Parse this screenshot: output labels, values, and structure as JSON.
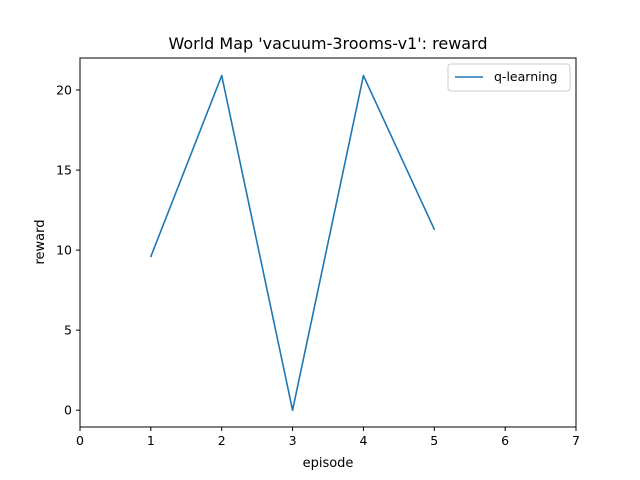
{
  "chart_data": {
    "type": "line",
    "title": "World Map 'vacuum-3rooms-v1': reward",
    "xlabel": "episode",
    "ylabel": "reward",
    "xlim": [
      0,
      7
    ],
    "ylim": [
      -1.05,
      22.0
    ],
    "xticks": [
      0,
      1,
      2,
      3,
      4,
      5,
      6,
      7
    ],
    "yticks": [
      0,
      5,
      10,
      15,
      20
    ],
    "grid": false,
    "legend_position": "top-right",
    "series": [
      {
        "name": "q-learning",
        "color": "#1f77b4",
        "x": [
          1,
          2,
          3,
          4,
          5
        ],
        "y": [
          9.6,
          20.9,
          0.0,
          20.9,
          11.3
        ]
      }
    ]
  }
}
